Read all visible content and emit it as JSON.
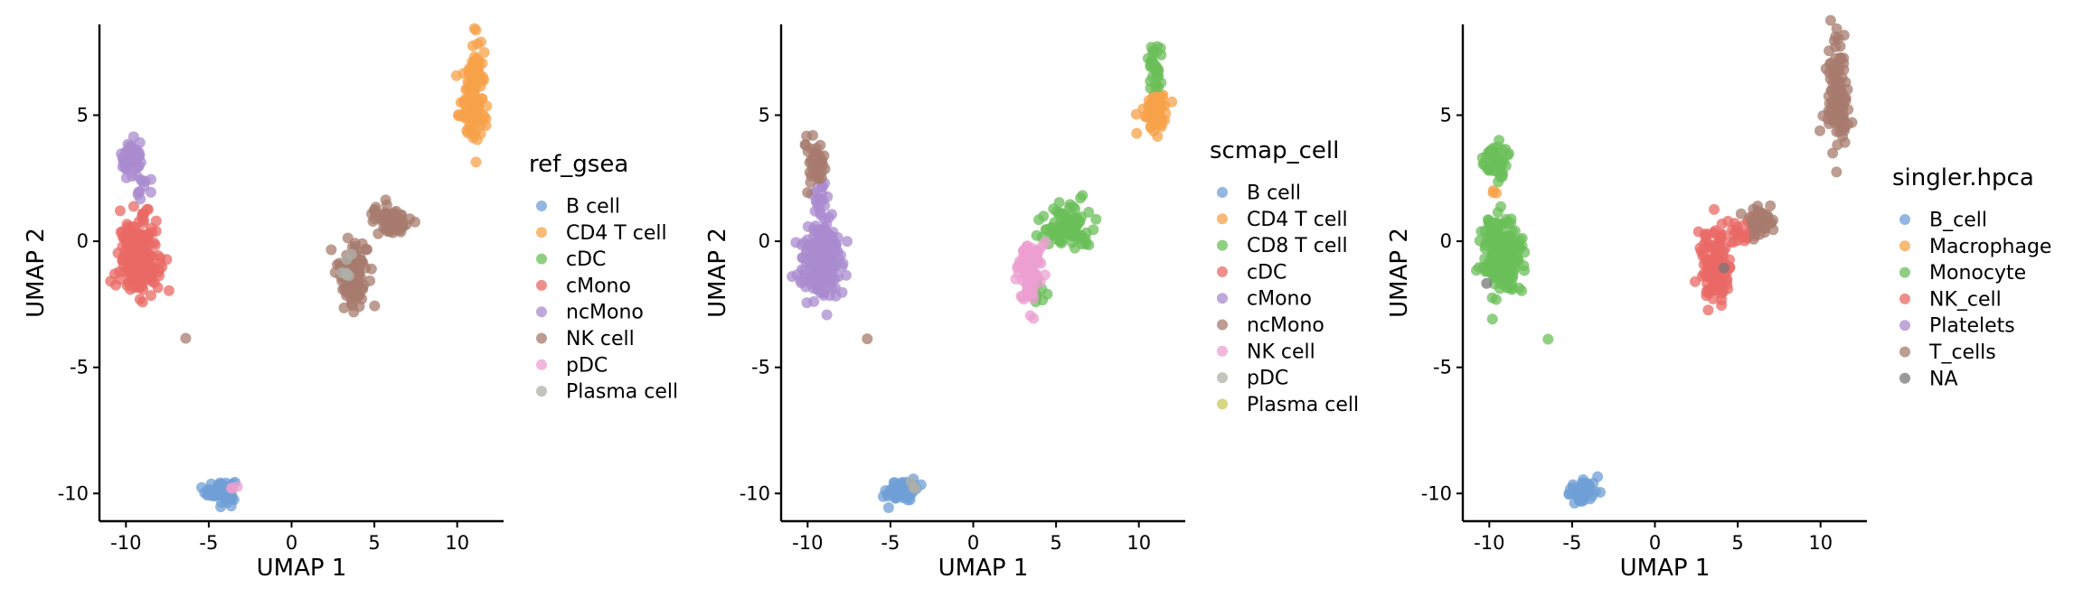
{
  "chart_data": [
    {
      "type": "scatter",
      "xlabel": "UMAP 1",
      "ylabel": "UMAP 2",
      "xlim": [
        -11.6,
        12.8
      ],
      "ylim": [
        -11.1,
        8.6
      ],
      "xticks": [
        -10,
        -5,
        0,
        5,
        10
      ],
      "yticks": [
        5,
        0,
        -5,
        -10
      ],
      "xtick_labels": [
        "-10",
        "-5",
        "0",
        "5",
        "10"
      ],
      "ytick_labels": [
        "5",
        "0",
        "-5",
        "-10"
      ],
      "grid": false,
      "legend_position": "right",
      "legend": {
        "title": "ref_gsea",
        "entries": [
          {
            "label": "B cell",
            "color": "#6f9fd6"
          },
          {
            "label": "CD4 T cell",
            "color": "#f7a14a"
          },
          {
            "label": "cDC",
            "color": "#6bbf59"
          },
          {
            "label": "cMono",
            "color": "#ea6a66"
          },
          {
            "label": "ncMono",
            "color": "#a98bcf"
          },
          {
            "label": "NK cell",
            "color": "#a77b6e"
          },
          {
            "label": "pDC",
            "color": "#ec9fd0"
          },
          {
            "label": "Plasma cell",
            "color": "#b0b0a8"
          }
        ]
      },
      "series": [
        {
          "label": "B cell",
          "color": "#6f9fd6",
          "clusters": [
            {
              "x": -4.3,
              "y": -9.9,
              "sx": 0.45,
              "sy": 0.22,
              "n": 60
            }
          ]
        },
        {
          "label": "CD4 T cell",
          "color": "#f7a14a",
          "clusters": [
            {
              "x": 11.0,
              "y": 6.2,
              "sx": 0.3,
              "sy": 1.0,
              "n": 90
            },
            {
              "x": 10.9,
              "y": 5.0,
              "sx": 0.4,
              "sy": 0.35,
              "n": 40
            }
          ]
        },
        {
          "label": "cMono",
          "color": "#ea6a66",
          "clusters": [
            {
              "x": -9.2,
              "y": -0.7,
              "sx": 0.6,
              "sy": 0.7,
              "n": 200
            },
            {
              "x": -10.5,
              "y": -1.6,
              "sx": 0.15,
              "sy": 0.15,
              "n": 3
            },
            {
              "x": -8.8,
              "y": 1.0,
              "sx": 0.2,
              "sy": 0.2,
              "n": 5
            }
          ]
        },
        {
          "label": "ncMono",
          "color": "#a98bcf",
          "clusters": [
            {
              "x": -9.6,
              "y": 3.3,
              "sx": 0.35,
              "sy": 0.35,
              "n": 50
            },
            {
              "x": -9.3,
              "y": 2.0,
              "sx": 0.3,
              "sy": 0.4,
              "n": 10
            }
          ]
        },
        {
          "label": "NK cell",
          "color": "#a77b6e",
          "clusters": [
            {
              "x": 3.7,
              "y": -1.2,
              "sx": 0.45,
              "sy": 0.65,
              "n": 120
            },
            {
              "x": 6.0,
              "y": 0.8,
              "sx": 0.55,
              "sy": 0.3,
              "n": 60
            },
            {
              "x": -6.4,
              "y": -3.9,
              "sx": 0.05,
              "sy": 0.05,
              "n": 1
            }
          ]
        },
        {
          "label": "pDC",
          "color": "#ec9fd0",
          "clusters": [
            {
              "x": -3.5,
              "y": -9.7,
              "sx": 0.15,
              "sy": 0.1,
              "n": 3
            }
          ]
        },
        {
          "label": "Plasma cell",
          "color": "#b0b0a8",
          "clusters": [
            {
              "x": 3.5,
              "y": -1.0,
              "sx": 0.3,
              "sy": 0.4,
              "n": 6
            }
          ]
        }
      ]
    },
    {
      "type": "scatter",
      "xlabel": "UMAP 1",
      "ylabel": "UMAP 2",
      "xlim": [
        -11.6,
        12.8
      ],
      "ylim": [
        -11.1,
        8.6
      ],
      "xticks": [
        -10,
        -5,
        0,
        5,
        10
      ],
      "yticks": [
        5,
        0,
        -5,
        -10
      ],
      "xtick_labels": [
        "-10",
        "-5",
        "0",
        "5",
        "10"
      ],
      "ytick_labels": [
        "5",
        "0",
        "-5",
        "-10"
      ],
      "grid": false,
      "legend_position": "right",
      "legend": {
        "title": "scmap_cell",
        "entries": [
          {
            "label": "B cell",
            "color": "#6f9fd6"
          },
          {
            "label": "CD4 T cell",
            "color": "#f7a14a"
          },
          {
            "label": "CD8 T cell",
            "color": "#6bbf59"
          },
          {
            "label": "cDC",
            "color": "#ea6a66"
          },
          {
            "label": "cMono",
            "color": "#a98bcf"
          },
          {
            "label": "ncMono",
            "color": "#a77b6e"
          },
          {
            "label": "NK cell",
            "color": "#ec9fd0"
          },
          {
            "label": "pDC",
            "color": "#b0b0a8"
          },
          {
            "label": "Plasma cell",
            "color": "#c9c85a"
          }
        ]
      },
      "series": [
        {
          "label": "B cell",
          "color": "#6f9fd6",
          "clusters": [
            {
              "x": -4.3,
              "y": -9.9,
              "sx": 0.45,
              "sy": 0.22,
              "n": 60
            }
          ]
        },
        {
          "label": "CD4 T cell",
          "color": "#f7a14a",
          "clusters": [
            {
              "x": 11.0,
              "y": 5.2,
              "sx": 0.35,
              "sy": 0.4,
              "n": 70
            }
          ]
        },
        {
          "label": "CD8 T cell",
          "color": "#6bbf59",
          "clusters": [
            {
              "x": 11.0,
              "y": 6.8,
              "sx": 0.2,
              "sy": 0.6,
              "n": 30
            },
            {
              "x": 5.6,
              "y": 0.6,
              "sx": 0.8,
              "sy": 0.45,
              "n": 90
            },
            {
              "x": 3.8,
              "y": -2.0,
              "sx": 0.25,
              "sy": 0.4,
              "n": 15
            }
          ]
        },
        {
          "label": "cMono",
          "color": "#a98bcf",
          "clusters": [
            {
              "x": -9.1,
              "y": -0.7,
              "sx": 0.6,
              "sy": 0.7,
              "n": 200
            },
            {
              "x": -9.4,
              "y": 1.5,
              "sx": 0.3,
              "sy": 0.5,
              "n": 20
            },
            {
              "x": -10.5,
              "y": -1.6,
              "sx": 0.15,
              "sy": 0.15,
              "n": 3
            }
          ]
        },
        {
          "label": "ncMono",
          "color": "#a77b6e",
          "clusters": [
            {
              "x": -9.6,
              "y": 3.2,
              "sx": 0.35,
              "sy": 0.4,
              "n": 50
            },
            {
              "x": -6.4,
              "y": -3.9,
              "sx": 0.05,
              "sy": 0.05,
              "n": 1
            }
          ]
        },
        {
          "label": "NK cell",
          "color": "#ec9fd0",
          "clusters": [
            {
              "x": 3.4,
              "y": -1.3,
              "sx": 0.35,
              "sy": 0.6,
              "n": 100
            }
          ]
        },
        {
          "label": "pDC",
          "color": "#b0b0a8",
          "clusters": [
            {
              "x": -3.5,
              "y": -9.7,
              "sx": 0.15,
              "sy": 0.1,
              "n": 3
            }
          ]
        }
      ]
    },
    {
      "type": "scatter",
      "xlabel": "UMAP 1",
      "ylabel": "UMAP 2",
      "xlim": [
        -11.6,
        12.8
      ],
      "ylim": [
        -11.1,
        8.6
      ],
      "xticks": [
        -10,
        -5,
        0,
        5,
        10
      ],
      "yticks": [
        5,
        0,
        -5,
        -10
      ],
      "xtick_labels": [
        "-10",
        "-5",
        "0",
        "5",
        "10"
      ],
      "ytick_labels": [
        "5",
        "0",
        "-5",
        "-10"
      ],
      "grid": false,
      "legend_position": "right",
      "legend": {
        "title": "singler.hpca",
        "entries": [
          {
            "label": "B_cell",
            "color": "#6f9fd6"
          },
          {
            "label": "Macrophage",
            "color": "#f7a14a"
          },
          {
            "label": "Monocyte",
            "color": "#6bbf59"
          },
          {
            "label": "NK_cell",
            "color": "#ea6a66"
          },
          {
            "label": "Platelets",
            "color": "#a98bcf"
          },
          {
            "label": "T_cells",
            "color": "#a77b6e"
          },
          {
            "label": "NA",
            "color": "#777777"
          }
        ]
      },
      "series": [
        {
          "label": "B_cell",
          "color": "#6f9fd6",
          "clusters": [
            {
              "x": -4.3,
              "y": -9.9,
              "sx": 0.45,
              "sy": 0.22,
              "n": 60
            }
          ]
        },
        {
          "label": "Macrophage",
          "color": "#f7a14a",
          "clusters": [
            {
              "x": -9.7,
              "y": 2.0,
              "sx": 0.1,
              "sy": 0.15,
              "n": 3
            }
          ]
        },
        {
          "label": "Monocyte",
          "color": "#6bbf59",
          "clusters": [
            {
              "x": -9.2,
              "y": -0.6,
              "sx": 0.6,
              "sy": 0.75,
              "n": 220
            },
            {
              "x": -9.6,
              "y": 3.2,
              "sx": 0.35,
              "sy": 0.4,
              "n": 50
            },
            {
              "x": -6.4,
              "y": -3.9,
              "sx": 0.05,
              "sy": 0.05,
              "n": 1
            }
          ]
        },
        {
          "label": "NK_cell",
          "color": "#ea6a66",
          "clusters": [
            {
              "x": 3.6,
              "y": -1.0,
              "sx": 0.45,
              "sy": 0.7,
              "n": 140
            },
            {
              "x": 5.0,
              "y": 0.3,
              "sx": 0.5,
              "sy": 0.3,
              "n": 30
            }
          ]
        },
        {
          "label": "T_cells",
          "color": "#a77b6e",
          "clusters": [
            {
              "x": 11.0,
              "y": 6.2,
              "sx": 0.3,
              "sy": 1.0,
              "n": 90
            },
            {
              "x": 10.9,
              "y": 5.0,
              "sx": 0.4,
              "sy": 0.35,
              "n": 40
            },
            {
              "x": 6.2,
              "y": 0.8,
              "sx": 0.45,
              "sy": 0.3,
              "n": 40
            }
          ]
        },
        {
          "label": "NA",
          "color": "#777777",
          "clusters": [
            {
              "x": -10.2,
              "y": -1.65,
              "sx": 0.05,
              "sy": 0.05,
              "n": 1
            },
            {
              "x": 4.2,
              "y": -1.1,
              "sx": 0.05,
              "sy": 0.05,
              "n": 1
            }
          ]
        }
      ]
    }
  ]
}
